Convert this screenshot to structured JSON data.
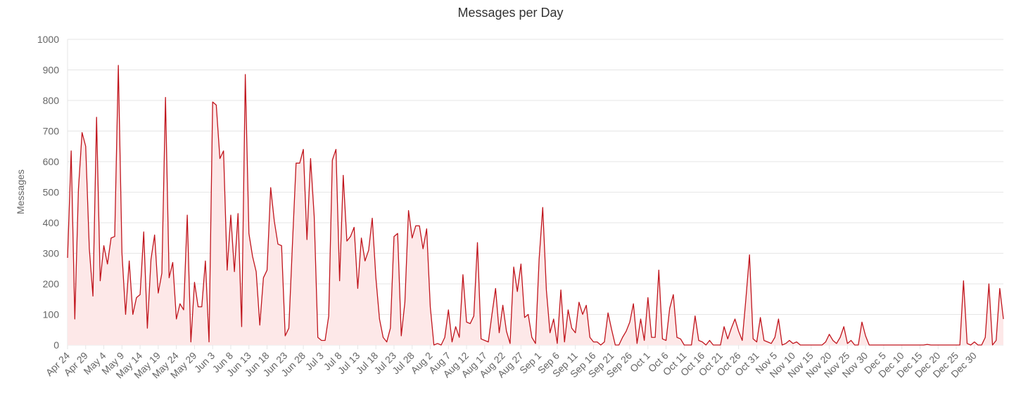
{
  "chart_data": {
    "type": "area",
    "title": "Messages per Day",
    "ylabel": "Messages",
    "xlabel": "",
    "ylim": [
      0,
      1000
    ],
    "yticks": [
      0,
      100,
      200,
      300,
      400,
      500,
      600,
      700,
      800,
      900,
      1000
    ],
    "grid": true,
    "colors": {
      "line": "#c0141c",
      "fill": "#fde8e8",
      "grid": "#e6e6e6",
      "text": "#666666"
    },
    "xtick_labels": [
      "Apr 24",
      "Apr 29",
      "May 4",
      "May 9",
      "May 14",
      "May 19",
      "May 24",
      "May 29",
      "Jun 3",
      "Jun 8",
      "Jun 13",
      "Jun 18",
      "Jun 23",
      "Jun 28",
      "Jul 3",
      "Jul 8",
      "Jul 13",
      "Jul 18",
      "Jul 23",
      "Jul 28",
      "Aug 2",
      "Aug 7",
      "Aug 12",
      "Aug 17",
      "Aug 22",
      "Aug 27",
      "Sep 1",
      "Sep 6",
      "Sep 11",
      "Sep 16",
      "Sep 21",
      "Sep 26",
      "Oct 1",
      "Oct 6",
      "Oct 11",
      "Oct 16",
      "Oct 21",
      "Oct 26",
      "Oct 31",
      "Nov 5",
      "Nov 10",
      "Nov 15",
      "Nov 20",
      "Nov 25",
      "Nov 30",
      "Dec 5",
      "Dec 10",
      "Dec 15",
      "Dec 20",
      "Dec 25",
      "Dec 30"
    ],
    "x_start": "Apr 24",
    "x_end": "Jan 1",
    "values": [
      285,
      635,
      85,
      510,
      695,
      650,
      315,
      160,
      745,
      210,
      325,
      265,
      350,
      355,
      915,
      300,
      100,
      275,
      100,
      155,
      165,
      370,
      55,
      280,
      360,
      170,
      235,
      810,
      220,
      270,
      85,
      135,
      115,
      425,
      10,
      205,
      125,
      125,
      275,
      10,
      795,
      785,
      610,
      635,
      245,
      425,
      240,
      430,
      60,
      885,
      365,
      290,
      240,
      65,
      220,
      245,
      515,
      405,
      330,
      325,
      30,
      55,
      330,
      595,
      595,
      640,
      345,
      610,
      420,
      25,
      15,
      15,
      95,
      605,
      640,
      210,
      555,
      340,
      355,
      385,
      185,
      350,
      275,
      310,
      415,
      220,
      85,
      25,
      10,
      55,
      355,
      365,
      30,
      140,
      440,
      350,
      390,
      390,
      315,
      380,
      125,
      0,
      5,
      0,
      25,
      115,
      10,
      60,
      25,
      230,
      75,
      70,
      95,
      335,
      20,
      15,
      10,
      100,
      185,
      40,
      130,
      45,
      5,
      255,
      175,
      265,
      90,
      100,
      25,
      5,
      280,
      450,
      180,
      40,
      85,
      5,
      180,
      10,
      115,
      55,
      40,
      140,
      100,
      130,
      25,
      10,
      10,
      0,
      10,
      105,
      50,
      0,
      0,
      25,
      45,
      75,
      135,
      5,
      85,
      15,
      155,
      25,
      25,
      245,
      20,
      15,
      120,
      165,
      25,
      20,
      0,
      0,
      0,
      95,
      15,
      10,
      0,
      15,
      0,
      0,
      0,
      60,
      20,
      55,
      85,
      45,
      15,
      150,
      295,
      20,
      10,
      90,
      15,
      10,
      5,
      25,
      85,
      0,
      5,
      15,
      5,
      10,
      0,
      0,
      0,
      0,
      0,
      0,
      0,
      10,
      35,
      15,
      5,
      25,
      60,
      5,
      15,
      0,
      0,
      75,
      30,
      0,
      0,
      0,
      0,
      0,
      0,
      0,
      0,
      0,
      0,
      0,
      0,
      0,
      0,
      0,
      0,
      2,
      0,
      0,
      0,
      0,
      0,
      0,
      0,
      0,
      0,
      210,
      5,
      0,
      10,
      0,
      0,
      25,
      200,
      0,
      15,
      185,
      85
    ]
  }
}
